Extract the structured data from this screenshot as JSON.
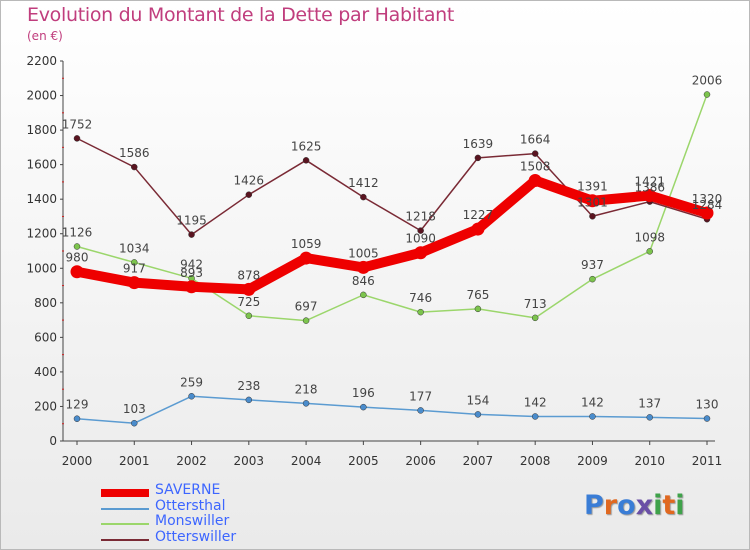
{
  "title": "Evolution du Montant de la Dette par Habitant",
  "unit_label": "(en €)",
  "logo": {
    "text": "Proxiti",
    "letter_colors": [
      "#3a7dd6",
      "#e06820",
      "#3a7dd6",
      "#6a4fa6",
      "#3fa24a",
      "#e06820",
      "#3fa24a"
    ]
  },
  "chart_data": {
    "type": "line",
    "x": [
      "2000",
      "2001",
      "2002",
      "2003",
      "2004",
      "2005",
      "2006",
      "2007",
      "2008",
      "2009",
      "2010",
      "2011"
    ],
    "ylim": [
      0,
      2200
    ],
    "yticks": [
      "0",
      "200",
      "400",
      "600",
      "800",
      "1000",
      "1200",
      "1400",
      "1600",
      "1800",
      "2000",
      "2200"
    ],
    "grid": false,
    "legend_position": "bottom-left",
    "series": [
      {
        "name": "Ottersthal",
        "color": "#5b9bd1",
        "point_color": "#4a8ccc",
        "values": [
          129,
          103,
          259,
          238,
          218,
          196,
          177,
          154,
          142,
          142,
          137,
          130
        ]
      },
      {
        "name": "Monswiller",
        "color": "#9bd66b",
        "point_color": "#7cc44d",
        "values": [
          1126,
          1034,
          942,
          725,
          697,
          846,
          746,
          765,
          713,
          937,
          1098,
          2006
        ]
      },
      {
        "name": "Otterswiller",
        "color": "#7a2a35",
        "point_color": "#5a1420",
        "values": [
          1752,
          1586,
          1195,
          1426,
          1625,
          1412,
          1218,
          1639,
          1664,
          1301,
          1386,
          1284
        ]
      },
      {
        "name": "SAVERNE",
        "color": "#ee0000",
        "point_color": "#ee0000",
        "values": [
          980,
          917,
          893,
          878,
          1059,
          1005,
          1090,
          1227,
          1508,
          1391,
          1421,
          1320
        ]
      }
    ]
  }
}
